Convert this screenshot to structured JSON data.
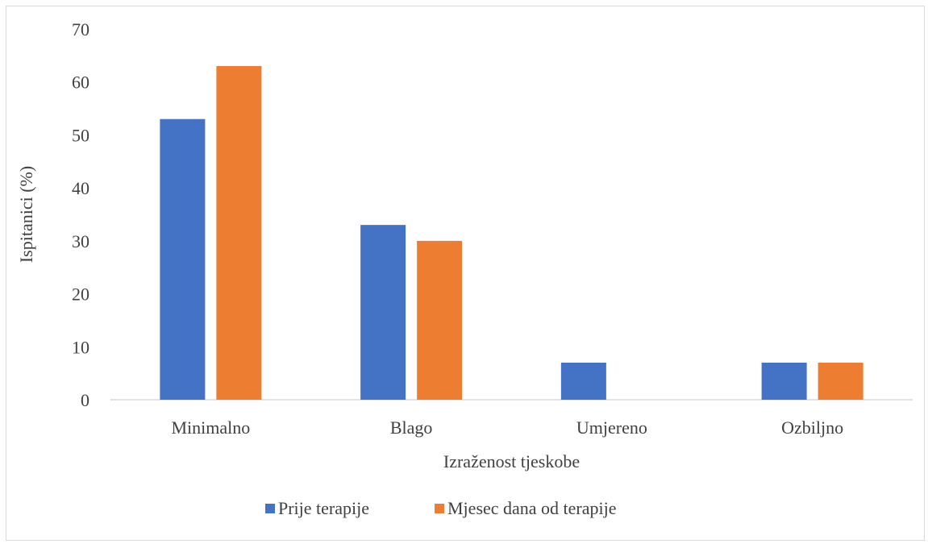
{
  "chart_data": {
    "type": "bar",
    "categories": [
      "Minimalno",
      "Blago",
      "Umjereno",
      "Ozbiljno"
    ],
    "series": [
      {
        "name": "Prije terapije",
        "values": [
          53,
          33,
          7,
          7
        ],
        "color": "#4472C4"
      },
      {
        "name": "Mjesec dana od terapije",
        "values": [
          63,
          30,
          0,
          7
        ],
        "color": "#ED7D31"
      }
    ],
    "xlabel": "Izraženost tjeskobe",
    "ylabel": "Ispitanici (%)",
    "ylim": [
      0,
      70
    ],
    "yticks": [
      "0",
      "10",
      "20",
      "30",
      "40",
      "50",
      "60",
      "70"
    ],
    "grid": false,
    "legend_position": "bottom"
  }
}
